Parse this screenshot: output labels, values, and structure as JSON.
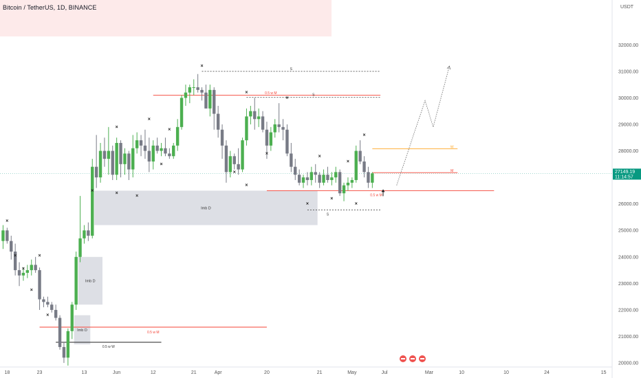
{
  "header": {
    "title": "Bitcoin / TetherUS, 1D, BINANCE",
    "panel_color": "#fdeaea"
  },
  "colors": {
    "up": "#4caf50",
    "down": "#787b86",
    "red_line": "#f44336",
    "orange_line": "#ffa726",
    "dash_line": "#505050",
    "zone": "#d1d4dc",
    "price_label_bg": "#089981",
    "current_line": "#089981"
  },
  "chart_data": {
    "type": "candlestick",
    "symbol": "BTCUSDT",
    "timeframe": "1D",
    "exchange": "BINANCE",
    "y_axis": {
      "unit": "USDT",
      "ticks": [
        20000,
        21000,
        22000,
        23000,
        24000,
        25000,
        26000,
        27000,
        28000,
        29000,
        30000,
        31000,
        32000
      ],
      "ylim": [
        19950,
        33200
      ]
    },
    "x_axis": {
      "ticks": [
        "21",
        "Mar",
        "13",
        "21",
        "Apr",
        "10",
        "18",
        "May",
        "15",
        "23",
        "Jun",
        "12",
        "20",
        "Jul",
        "10",
        "24"
      ]
    },
    "current_price": {
      "price": "27149.19",
      "countdown": "11:14:57"
    },
    "candles": [
      {
        "o": 24600,
        "h": 25200,
        "l": 24300,
        "c": 25000
      },
      {
        "o": 25000,
        "h": 25100,
        "l": 24500,
        "c": 24600
      },
      {
        "o": 24600,
        "h": 24800,
        "l": 23900,
        "c": 24200
      },
      {
        "o": 24200,
        "h": 24500,
        "l": 23300,
        "c": 23500
      },
      {
        "o": 23500,
        "h": 23800,
        "l": 22900,
        "c": 23300
      },
      {
        "o": 23300,
        "h": 23600,
        "l": 23100,
        "c": 23400
      },
      {
        "o": 23400,
        "h": 23700,
        "l": 23200,
        "c": 23500
      },
      {
        "o": 23500,
        "h": 23900,
        "l": 23300,
        "c": 23700
      },
      {
        "o": 23700,
        "h": 24000,
        "l": 23400,
        "c": 23500
      },
      {
        "o": 23500,
        "h": 23600,
        "l": 22000,
        "c": 22400
      },
      {
        "o": 22400,
        "h": 22500,
        "l": 22100,
        "c": 22300
      },
      {
        "o": 22300,
        "h": 22500,
        "l": 22100,
        "c": 22200
      },
      {
        "o": 22200,
        "h": 22300,
        "l": 21900,
        "c": 22000
      },
      {
        "o": 22000,
        "h": 22200,
        "l": 21600,
        "c": 21700
      },
      {
        "o": 21700,
        "h": 21800,
        "l": 20500,
        "c": 20600
      },
      {
        "o": 20600,
        "h": 20800,
        "l": 20000,
        "c": 20200
      },
      {
        "o": 20200,
        "h": 21300,
        "l": 19900,
        "c": 21200
      },
      {
        "o": 21200,
        "h": 22300,
        "l": 20900,
        "c": 22200
      },
      {
        "o": 22200,
        "h": 24200,
        "l": 22000,
        "c": 24000
      },
      {
        "o": 24000,
        "h": 26300,
        "l": 23800,
        "c": 24700
      },
      {
        "o": 24700,
        "h": 25200,
        "l": 24500,
        "c": 25000
      },
      {
        "o": 25000,
        "h": 25300,
        "l": 24600,
        "c": 24800
      },
      {
        "o": 24800,
        "h": 27700,
        "l": 24700,
        "c": 27400
      },
      {
        "o": 27400,
        "h": 28600,
        "l": 26600,
        "c": 27000
      },
      {
        "o": 27000,
        "h": 28300,
        "l": 26800,
        "c": 28000
      },
      {
        "o": 28000,
        "h": 28500,
        "l": 27400,
        "c": 27700
      },
      {
        "o": 27700,
        "h": 28900,
        "l": 27100,
        "c": 28000
      },
      {
        "o": 28000,
        "h": 28200,
        "l": 26900,
        "c": 27100
      },
      {
        "o": 27100,
        "h": 28500,
        "l": 26900,
        "c": 28300
      },
      {
        "o": 28300,
        "h": 28400,
        "l": 27000,
        "c": 27500
      },
      {
        "o": 27500,
        "h": 28100,
        "l": 27100,
        "c": 27900
      },
      {
        "o": 27900,
        "h": 28000,
        "l": 26900,
        "c": 27300
      },
      {
        "o": 27300,
        "h": 28600,
        "l": 27000,
        "c": 28100
      },
      {
        "o": 28100,
        "h": 28700,
        "l": 27900,
        "c": 28400
      },
      {
        "o": 28400,
        "h": 28600,
        "l": 27800,
        "c": 28200
      },
      {
        "o": 28200,
        "h": 28800,
        "l": 27700,
        "c": 28000
      },
      {
        "o": 28000,
        "h": 28500,
        "l": 27200,
        "c": 27600
      },
      {
        "o": 27600,
        "h": 28400,
        "l": 27300,
        "c": 28200
      },
      {
        "o": 28200,
        "h": 28500,
        "l": 27900,
        "c": 28000
      },
      {
        "o": 28000,
        "h": 28300,
        "l": 27800,
        "c": 28100
      },
      {
        "o": 28100,
        "h": 28500,
        "l": 27800,
        "c": 27900
      },
      {
        "o": 27900,
        "h": 28100,
        "l": 27700,
        "c": 27800
      },
      {
        "o": 27800,
        "h": 28300,
        "l": 27700,
        "c": 28200
      },
      {
        "o": 28200,
        "h": 29200,
        "l": 28000,
        "c": 28900
      },
      {
        "o": 28900,
        "h": 30100,
        "l": 28800,
        "c": 30000
      },
      {
        "o": 30000,
        "h": 30500,
        "l": 29700,
        "c": 30200
      },
      {
        "o": 30200,
        "h": 30500,
        "l": 29800,
        "c": 30400
      },
      {
        "o": 30400,
        "h": 30700,
        "l": 30100,
        "c": 30400
      },
      {
        "o": 30400,
        "h": 30900,
        "l": 30200,
        "c": 30300
      },
      {
        "o": 30300,
        "h": 30400,
        "l": 29900,
        "c": 30200
      },
      {
        "o": 30200,
        "h": 30500,
        "l": 29600,
        "c": 29600
      },
      {
        "o": 29600,
        "h": 30500,
        "l": 29300,
        "c": 30300
      },
      {
        "o": 30300,
        "h": 30400,
        "l": 28800,
        "c": 29400
      },
      {
        "o": 29400,
        "h": 29700,
        "l": 28500,
        "c": 28800
      },
      {
        "o": 28800,
        "h": 29000,
        "l": 27700,
        "c": 28200
      },
      {
        "o": 28200,
        "h": 28400,
        "l": 26800,
        "c": 27200
      },
      {
        "o": 27200,
        "h": 28000,
        "l": 27000,
        "c": 27800
      },
      {
        "o": 27800,
        "h": 27900,
        "l": 27300,
        "c": 27500
      },
      {
        "o": 27500,
        "h": 28100,
        "l": 27100,
        "c": 27300
      },
      {
        "o": 27300,
        "h": 28500,
        "l": 27200,
        "c": 28400
      },
      {
        "o": 28400,
        "h": 29600,
        "l": 28200,
        "c": 29300
      },
      {
        "o": 29300,
        "h": 29700,
        "l": 29000,
        "c": 29500
      },
      {
        "o": 29500,
        "h": 30000,
        "l": 28800,
        "c": 29200
      },
      {
        "o": 29200,
        "h": 29600,
        "l": 28900,
        "c": 29300
      },
      {
        "o": 29300,
        "h": 29500,
        "l": 28700,
        "c": 28800
      },
      {
        "o": 28800,
        "h": 29100,
        "l": 27700,
        "c": 28200
      },
      {
        "o": 28200,
        "h": 28900,
        "l": 28000,
        "c": 28700
      },
      {
        "o": 28700,
        "h": 29200,
        "l": 28500,
        "c": 29000
      },
      {
        "o": 29000,
        "h": 29800,
        "l": 28700,
        "c": 28900
      },
      {
        "o": 28900,
        "h": 29200,
        "l": 28400,
        "c": 28800
      },
      {
        "o": 28800,
        "h": 29000,
        "l": 27800,
        "c": 27900
      },
      {
        "o": 27900,
        "h": 28300,
        "l": 27200,
        "c": 27400
      },
      {
        "o": 27400,
        "h": 27700,
        "l": 26900,
        "c": 27100
      },
      {
        "o": 27100,
        "h": 27300,
        "l": 26700,
        "c": 26800
      },
      {
        "o": 26800,
        "h": 27100,
        "l": 26600,
        "c": 27000
      },
      {
        "o": 27000,
        "h": 27200,
        "l": 26700,
        "c": 26900
      },
      {
        "o": 26900,
        "h": 27400,
        "l": 26700,
        "c": 27200
      },
      {
        "o": 27200,
        "h": 27500,
        "l": 26800,
        "c": 27100
      },
      {
        "o": 27100,
        "h": 27200,
        "l": 26600,
        "c": 26800
      },
      {
        "o": 26800,
        "h": 27300,
        "l": 26700,
        "c": 27100
      },
      {
        "o": 27100,
        "h": 27400,
        "l": 26800,
        "c": 26900
      },
      {
        "o": 26900,
        "h": 27200,
        "l": 26700,
        "c": 27000
      },
      {
        "o": 27000,
        "h": 27400,
        "l": 26800,
        "c": 27200
      },
      {
        "o": 27200,
        "h": 27300,
        "l": 26300,
        "c": 26400
      },
      {
        "o": 26400,
        "h": 26800,
        "l": 26100,
        "c": 26700
      },
      {
        "o": 26700,
        "h": 27000,
        "l": 26500,
        "c": 26800
      },
      {
        "o": 26800,
        "h": 27000,
        "l": 26600,
        "c": 26900
      },
      {
        "o": 26900,
        "h": 28200,
        "l": 26800,
        "c": 28000
      },
      {
        "o": 28000,
        "h": 28400,
        "l": 27500,
        "c": 27600
      },
      {
        "o": 27600,
        "h": 27800,
        "l": 27000,
        "c": 27200
      },
      {
        "o": 27200,
        "h": 27400,
        "l": 26600,
        "c": 26800
      },
      {
        "o": 26800,
        "h": 27200,
        "l": 26600,
        "c": 27149
      }
    ],
    "annotations": {
      "imbalance_zones": [
        {
          "label": "Imb D",
          "from_bar": 23,
          "to_bar": 77,
          "top": 26500,
          "bottom": 25200
        },
        {
          "label": "Imb D",
          "from_bar": 19,
          "to_bar": 24,
          "top": 24000,
          "bottom": 22200
        },
        {
          "label": "Imb D",
          "from_bar": 18,
          "to_bar": 21,
          "top": 21800,
          "bottom": 20700
        }
      ],
      "levels": [
        {
          "label": "0.5 w M",
          "price": 30100,
          "from_bar": 37,
          "to_bar": 93,
          "style": "solid-red"
        },
        {
          "label": "S",
          "price": 31000,
          "from_bar": 49,
          "to_bar": 93,
          "style": "dashed"
        },
        {
          "label": "S",
          "price": 30020,
          "from_bar": 60,
          "to_bar": 93,
          "style": "dashed"
        },
        {
          "label": "W",
          "price": 28080,
          "from_bar": 91,
          "to_bar": 112,
          "style": "solid-orange"
        },
        {
          "label": "M",
          "price": 27180,
          "from_bar": 91,
          "to_bar": 112,
          "style": "solid-red"
        },
        {
          "label": "0.5 w M",
          "price": 26500,
          "from_bar": 65,
          "to_bar": 121,
          "style": "solid-red"
        },
        {
          "label": "S",
          "price": 25770,
          "from_bar": 75,
          "to_bar": 93,
          "style": "dashed"
        },
        {
          "label": "0.5 w M",
          "price": 21350,
          "from_bar": 9,
          "to_bar": 65,
          "style": "solid-red"
        },
        {
          "label": "0.5 w W",
          "price": 20780,
          "from_bar": 13,
          "to_bar": 39,
          "style": "solid-dark"
        }
      ],
      "projection_path": [
        {
          "bar": 97,
          "price": 26700
        },
        {
          "bar": 104,
          "price": 29900
        },
        {
          "bar": 106,
          "price": 28900
        },
        {
          "bar": 110,
          "price": 31200
        }
      ]
    }
  },
  "x_tick_bars": {
    "21": 1,
    "Mar": 9,
    "13": 20,
    "21b": 28,
    "Apr": 37,
    "10": 47,
    "18": 53,
    "May": 65,
    "15": 78,
    "23": 86,
    "Jun": 94,
    "12": 105,
    "20": 113,
    "Jul": 124,
    "10b": 134,
    "24": 148
  },
  "markers": {
    "x_marks": [
      {
        "bar": 1,
        "price": 25350
      },
      {
        "bar": 3,
        "price": 24050
      },
      {
        "bar": 5,
        "price": 23550
      },
      {
        "bar": 7,
        "price": 22750
      },
      {
        "bar": 9,
        "price": 24050
      },
      {
        "bar": 11,
        "price": 21800
      },
      {
        "bar": 22,
        "price": 26500
      },
      {
        "bar": 28,
        "price": 28900
      },
      {
        "bar": 28,
        "price": 26400
      },
      {
        "bar": 33,
        "price": 26300
      },
      {
        "bar": 36,
        "price": 29200
      },
      {
        "bar": 39,
        "price": 27500
      },
      {
        "bar": 41,
        "price": 28800
      },
      {
        "bar": 49,
        "price": 31200
      },
      {
        "bar": 57,
        "price": 27200
      },
      {
        "bar": 60,
        "price": 30200
      },
      {
        "bar": 60,
        "price": 26700
      },
      {
        "bar": 65,
        "price": 27900
      },
      {
        "bar": 70,
        "price": 30000
      },
      {
        "bar": 75,
        "price": 26000
      },
      {
        "bar": 78,
        "price": 27800
      },
      {
        "bar": 81,
        "price": 26200
      },
      {
        "bar": 85,
        "price": 27600
      },
      {
        "bar": 87,
        "price": 26000
      },
      {
        "bar": 89,
        "price": 28600
      }
    ],
    "upward_arrow": {
      "bar": 94,
      "price": 26500
    }
  },
  "brand_icons": [
    "earnings-icon",
    "earnings-icon",
    "earnings-icon"
  ]
}
